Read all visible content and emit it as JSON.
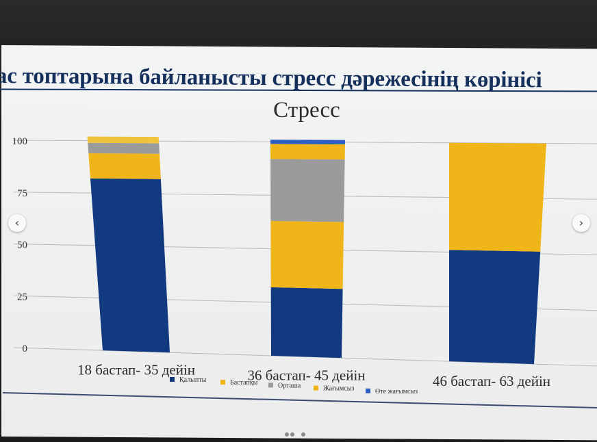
{
  "slide": {
    "heading": "ас топтарына байланысты стресс дәрежесінің көрінісі"
  },
  "chart_data": {
    "type": "bar",
    "stacked": true,
    "title": "Стресс",
    "xlabel": "",
    "ylabel": "",
    "ylim": [
      0,
      100
    ],
    "yticks": [
      0,
      25,
      50,
      75,
      100
    ],
    "grid": true,
    "legend_position": "bottom",
    "categories": [
      "18 бастап- 35 дейін",
      "36 бастап- 45 дейін",
      "46 бастап- 63 дейін"
    ],
    "series": [
      {
        "name": "Қалыпты",
        "color": "#123a80",
        "values": [
          82,
          32,
          51
        ]
      },
      {
        "name": "Бастапқы",
        "color": "#f0b519",
        "values": [
          0,
          31,
          0
        ]
      },
      {
        "name": "Орташа",
        "color": "#9b9b9b",
        "values": [
          0,
          29,
          0
        ]
      },
      {
        "name": "Жағымсыз",
        "color": "#f0b519",
        "values": [
          12,
          7,
          49
        ]
      },
      {
        "name": "Өте жағымсыз",
        "color": "#2d5fc2",
        "values": [
          0,
          2,
          0
        ]
      }
    ],
    "top_segment": {
      "color": "#f0c43a",
      "values": [
        3,
        0,
        0
      ]
    },
    "mid_gray": {
      "color": "#9b9b9b",
      "values": [
        5,
        0,
        0
      ]
    }
  },
  "carousel": {
    "prev_icon": "chevron-left-icon",
    "next_icon": "chevron-right-icon",
    "prev_glyph": "‹",
    "next_glyph": "›",
    "dot_count": 4,
    "active_dot": 2
  }
}
